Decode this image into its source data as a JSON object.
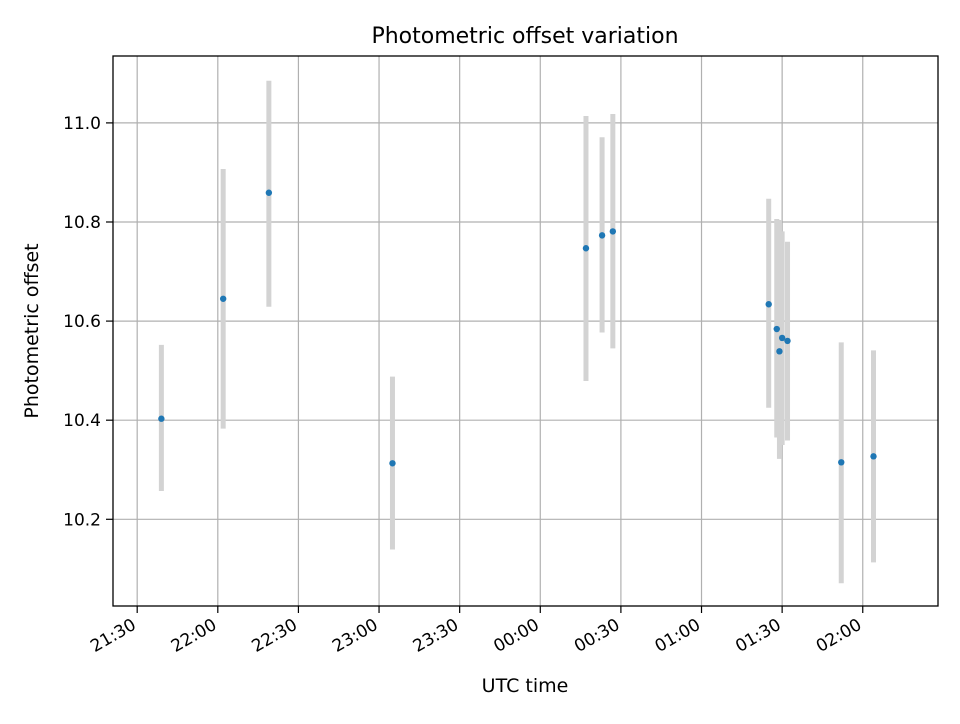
{
  "chart_data": {
    "type": "scatter",
    "title": "Photometric offset variation",
    "xlabel": "UTC time",
    "ylabel": "Photometric offset",
    "x_unit": "UTC time (HH:MM); times after midnight belong to the following day",
    "xlim": [
      "21:21",
      "02:28"
    ],
    "ylim": [
      10.025,
      11.135
    ],
    "x_ticks": [
      "21:30",
      "22:00",
      "22:30",
      "23:00",
      "23:30",
      "00:00",
      "00:30",
      "01:00",
      "01:30",
      "02:00"
    ],
    "y_ticks": [
      "10.2",
      "10.4",
      "10.6",
      "10.8",
      "11.0"
    ],
    "grid": true,
    "legend": "none",
    "colors": {
      "point": "#1f77b4",
      "errorbar": "#d3d3d3",
      "grid": "#b0b0b0"
    },
    "series": [
      {
        "points": [
          {
            "x": "21:39",
            "y": 10.403,
            "ylow": 10.257,
            "yhigh": 10.552
          },
          {
            "x": "22:02",
            "y": 10.645,
            "ylow": 10.383,
            "yhigh": 10.907
          },
          {
            "x": "22:19",
            "y": 10.859,
            "ylow": 10.629,
            "yhigh": 11.085
          },
          {
            "x": "23:05",
            "y": 10.313,
            "ylow": 10.139,
            "yhigh": 10.488
          },
          {
            "x": "00:17",
            "y": 10.747,
            "ylow": 10.479,
            "yhigh": 11.014
          },
          {
            "x": "00:23",
            "y": 10.773,
            "ylow": 10.577,
            "yhigh": 10.971
          },
          {
            "x": "00:27",
            "y": 10.781,
            "ylow": 10.545,
            "yhigh": 11.018
          },
          {
            "x": "01:25",
            "y": 10.634,
            "ylow": 10.425,
            "yhigh": 10.847
          },
          {
            "x": "01:28",
            "y": 10.584,
            "ylow": 10.365,
            "yhigh": 10.806
          },
          {
            "x": "01:29",
            "y": 10.539,
            "ylow": 10.322,
            "yhigh": 10.804
          },
          {
            "x": "01:30",
            "y": 10.566,
            "ylow": 10.35,
            "yhigh": 10.781
          },
          {
            "x": "01:32",
            "y": 10.56,
            "ylow": 10.359,
            "yhigh": 10.76
          },
          {
            "x": "01:52",
            "y": 10.315,
            "ylow": 10.071,
            "yhigh": 10.557
          },
          {
            "x": "02:04",
            "y": 10.327,
            "ylow": 10.113,
            "yhigh": 10.541
          }
        ]
      }
    ]
  }
}
